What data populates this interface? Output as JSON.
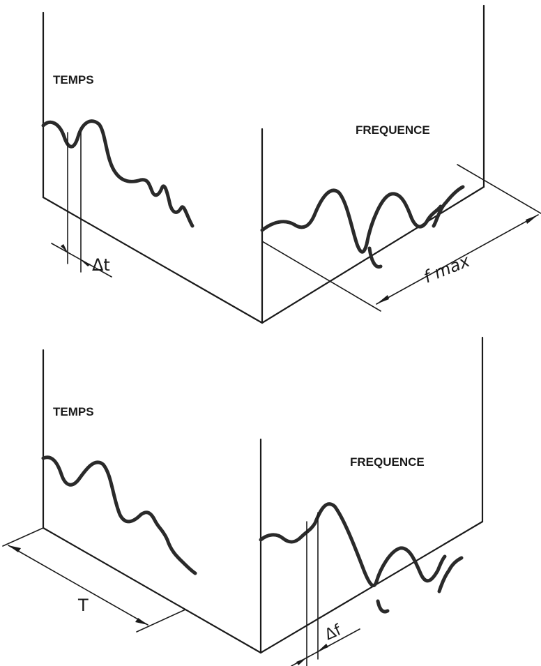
{
  "panels": [
    {
      "time_label": "TEMPS",
      "freq_label": "FREQUENCE",
      "time_dim_label": "Δt",
      "freq_dim_label": "f max"
    },
    {
      "time_label": "TEMPS",
      "freq_label": "FREQUENCE",
      "time_dim_label": "T",
      "freq_dim_label": "Δf"
    }
  ]
}
